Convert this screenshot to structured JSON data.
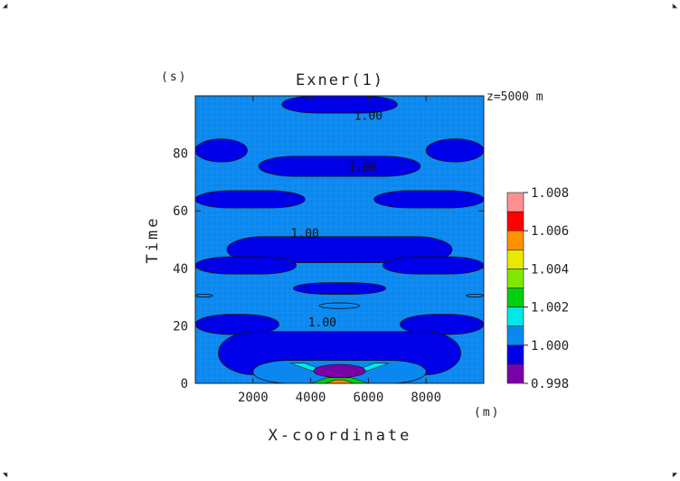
{
  "chart_data": {
    "type": "heatmap",
    "title": "Exner(1)",
    "annotation": "z=5000 m",
    "xlabel": "X-coordinate",
    "xunit": "(m)",
    "ylabel": "Time",
    "yunit": "(s)",
    "xlim": [
      0,
      10000
    ],
    "ylim": [
      0,
      100
    ],
    "xticks": [
      2000,
      4000,
      6000,
      8000
    ],
    "yticks": [
      0,
      20,
      40,
      60,
      80
    ],
    "contour_labels": [
      {
        "text": "1.00",
        "x": 6000,
        "y": 93
      },
      {
        "text": "1.00",
        "x": 5800,
        "y": 75
      },
      {
        "text": "1.00",
        "x": 3800,
        "y": 52
      },
      {
        "text": "1.00",
        "x": 4400,
        "y": 21
      }
    ],
    "colorbar": {
      "levels": [
        0.998,
        1.0,
        1.002,
        1.004,
        1.006,
        1.008
      ],
      "tick_labels": [
        "0.998",
        "1.000",
        "1.002",
        "1.004",
        "1.006",
        "1.008"
      ],
      "colors": [
        "#7a00a8",
        "#0000e8",
        "#0a88f0",
        "#00e8e8",
        "#00d010",
        "#80e800",
        "#e8e800",
        "#ff9000",
        "#ff0000",
        "#ff9090"
      ]
    },
    "background_value": 1.0,
    "regions": [
      {
        "value": 0.999,
        "x": [
          3000,
          7000
        ],
        "y": [
          94,
          100
        ]
      },
      {
        "value": 0.999,
        "x": [
          0,
          1800
        ],
        "y": [
          77,
          85
        ]
      },
      {
        "value": 0.999,
        "x": [
          8000,
          10000
        ],
        "y": [
          77,
          85
        ]
      },
      {
        "value": 0.999,
        "x": [
          2200,
          7800
        ],
        "y": [
          72,
          79
        ]
      },
      {
        "value": 0.999,
        "x": [
          0,
          3800
        ],
        "y": [
          61,
          67
        ]
      },
      {
        "value": 0.999,
        "x": [
          6200,
          10000
        ],
        "y": [
          61,
          67
        ]
      },
      {
        "value": 0.999,
        "x": [
          1100,
          8900
        ],
        "y": [
          42,
          51
        ]
      },
      {
        "value": 0.999,
        "x": [
          0,
          3500
        ],
        "y": [
          38,
          44
        ]
      },
      {
        "value": 0.999,
        "x": [
          6500,
          10000
        ],
        "y": [
          38,
          44
        ]
      },
      {
        "value": 0.999,
        "x": [
          3400,
          6600
        ],
        "y": [
          31,
          35
        ]
      },
      {
        "value": 0.999,
        "x": [
          0,
          2900
        ],
        "y": [
          17,
          24
        ]
      },
      {
        "value": 0.999,
        "x": [
          7100,
          10000
        ],
        "y": [
          17,
          24
        ]
      },
      {
        "value": 0.999,
        "x": [
          800,
          9200
        ],
        "y": [
          3,
          18
        ]
      },
      {
        "value": 1.001,
        "x": [
          0,
          600
        ],
        "y": [
          30,
          31
        ]
      },
      {
        "value": 1.001,
        "x": [
          9400,
          10000
        ],
        "y": [
          30,
          31
        ]
      },
      {
        "value": 1.001,
        "x": [
          4300,
          5700
        ],
        "y": [
          26,
          28
        ]
      },
      {
        "value": 1.001,
        "x": [
          2000,
          8000
        ],
        "y": [
          0,
          8
        ]
      }
    ]
  }
}
